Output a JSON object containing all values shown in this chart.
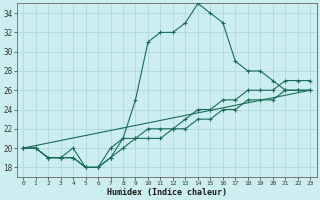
{
  "xlabel": "Humidex (Indice chaleur)",
  "bg_color": "#cceef0",
  "grid_color": "#b0d8da",
  "line_color": "#1a6b5a",
  "xlim": [
    -0.5,
    23.5
  ],
  "ylim": [
    17,
    35
  ],
  "yticks": [
    18,
    20,
    22,
    24,
    26,
    28,
    30,
    32,
    34
  ],
  "xticks": [
    0,
    1,
    2,
    3,
    4,
    5,
    6,
    7,
    8,
    9,
    10,
    11,
    12,
    13,
    14,
    15,
    16,
    17,
    18,
    19,
    20,
    21,
    22,
    23
  ],
  "series": [
    {
      "x": [
        0,
        1,
        2,
        3,
        4,
        5,
        6,
        7,
        8,
        9,
        10,
        11,
        12,
        13,
        14,
        15,
        16,
        17,
        18,
        19,
        20,
        21,
        22,
        23
      ],
      "y": [
        20,
        20,
        19,
        19,
        20,
        18,
        18,
        19,
        21,
        25,
        31,
        32,
        32,
        33,
        35,
        34,
        33,
        29,
        28,
        28,
        27,
        26,
        26,
        26
      ],
      "marker": "+"
    },
    {
      "x": [
        0,
        1,
        2,
        3,
        4,
        5,
        6,
        7,
        8,
        9,
        10,
        11,
        12,
        13,
        14,
        15,
        16,
        17,
        18,
        19,
        20,
        21,
        22,
        23
      ],
      "y": [
        20,
        20,
        19,
        19,
        19,
        18,
        18,
        20,
        21,
        21,
        22,
        22,
        22,
        23,
        24,
        24,
        25,
        25,
        26,
        26,
        26,
        27,
        27,
        27
      ],
      "marker": "+"
    },
    {
      "x": [
        0,
        1,
        2,
        3,
        4,
        5,
        6,
        7,
        8,
        9,
        10,
        11,
        12,
        13,
        14,
        15,
        16,
        17,
        18,
        19,
        20,
        21,
        22,
        23
      ],
      "y": [
        20,
        20,
        19,
        19,
        19,
        18,
        18,
        19,
        20,
        21,
        21,
        21,
        22,
        22,
        23,
        23,
        24,
        24,
        25,
        25,
        25,
        26,
        26,
        26
      ],
      "marker": "+"
    },
    {
      "x": [
        0,
        23
      ],
      "y": [
        20,
        26
      ],
      "marker": null
    }
  ]
}
